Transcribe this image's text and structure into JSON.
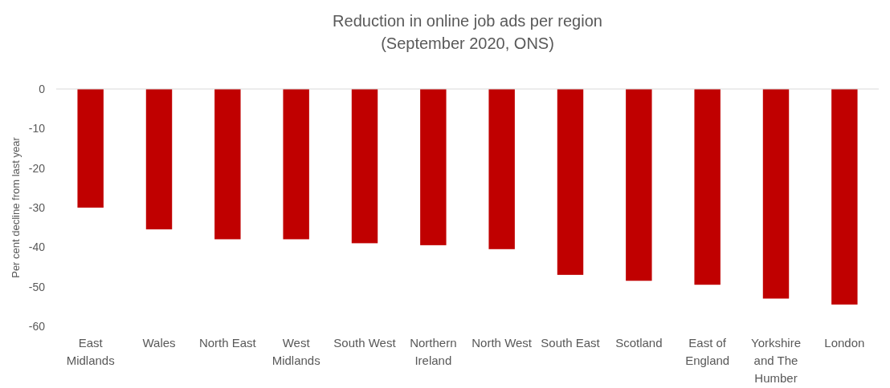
{
  "chart_data": {
    "type": "bar",
    "title": "Reduction in online job ads per region\n(September 2020, ONS)",
    "ylabel": "Per cent decline from last year",
    "categories": [
      "East Midlands",
      "Wales",
      "North East",
      "West Midlands",
      "South West",
      "Northern Ireland",
      "North West",
      "South East",
      "Scotland",
      "East of England",
      "Yorkshire and The Humber",
      "London"
    ],
    "values": [
      -30,
      -35.5,
      -38,
      -38,
      -39,
      -39.5,
      -40.5,
      -47,
      -48.5,
      -49.5,
      -53,
      -54.5
    ],
    "color": "#c00000",
    "ylim": [
      -60,
      0
    ],
    "yticks": [
      -60,
      -50,
      -40,
      -30,
      -20,
      -10,
      0
    ],
    "grid": false
  }
}
